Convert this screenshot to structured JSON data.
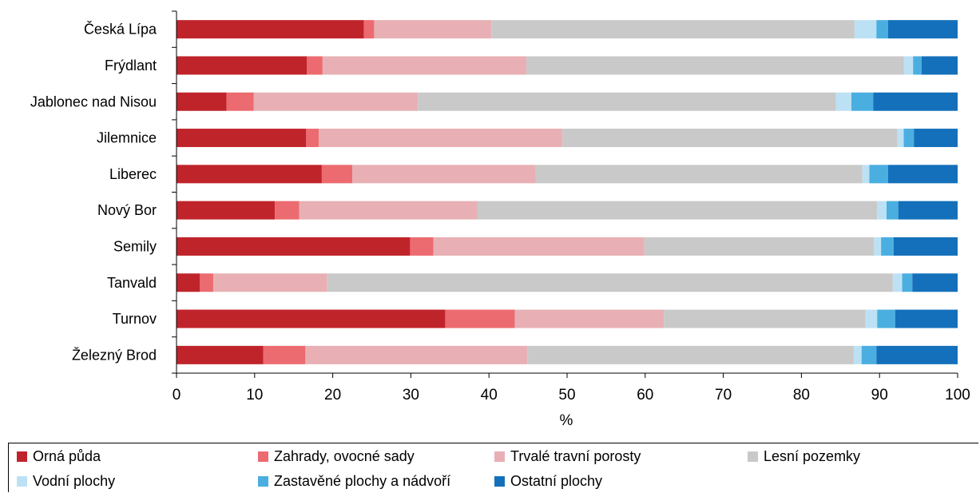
{
  "chart_data": {
    "type": "bar",
    "orientation": "horizontal",
    "stacked": "100%",
    "xlabel": "%",
    "xlim": [
      0,
      100
    ],
    "xticks": [
      0,
      10,
      20,
      30,
      40,
      50,
      60,
      70,
      80,
      90,
      100
    ],
    "grid": false,
    "legend_position": "bottom",
    "categories": [
      "Česká Lípa",
      "Frýdlant",
      "Jablonec nad Nisou",
      "Jilemnice",
      "Liberec",
      "Nový Bor",
      "Semily",
      "Tanvald",
      "Turnov",
      "Železný Brod"
    ],
    "series": [
      {
        "name": "Orná půda",
        "color": "#c0242b",
        "values": [
          24.0,
          16.7,
          6.4,
          16.6,
          18.6,
          12.6,
          29.9,
          3.0,
          34.4,
          11.1
        ]
      },
      {
        "name": "Zahrady, ovocné sady",
        "color": "#ec6b70",
        "values": [
          1.3,
          2.0,
          3.5,
          1.6,
          3.9,
          3.1,
          3.0,
          1.7,
          8.9,
          5.4
        ]
      },
      {
        "name": "Trvalé travní porosty",
        "color": "#e8b0b4",
        "values": [
          15.0,
          26.1,
          21.0,
          31.2,
          23.5,
          22.8,
          27.0,
          14.6,
          19.1,
          28.4
        ]
      },
      {
        "name": "Lesní pozemky",
        "color": "#c9c9c9",
        "values": [
          46.5,
          48.3,
          53.5,
          42.9,
          41.8,
          51.2,
          29.4,
          72.4,
          25.8,
          41.8
        ]
      },
      {
        "name": "Vodní plochy",
        "color": "#bde1f4",
        "values": [
          2.8,
          1.2,
          2.0,
          0.8,
          0.9,
          1.2,
          0.9,
          1.2,
          1.5,
          1.0
        ]
      },
      {
        "name": "Zastavěné plochy a nádvoří",
        "color": "#4aaee0",
        "values": [
          1.5,
          1.1,
          2.8,
          1.3,
          2.4,
          1.5,
          1.6,
          1.3,
          2.3,
          1.9
        ]
      },
      {
        "name": "Ostatní plochy",
        "color": "#1470ba",
        "values": [
          8.9,
          4.6,
          10.8,
          5.6,
          8.9,
          7.6,
          8.2,
          5.8,
          8.0,
          10.4
        ]
      }
    ]
  }
}
